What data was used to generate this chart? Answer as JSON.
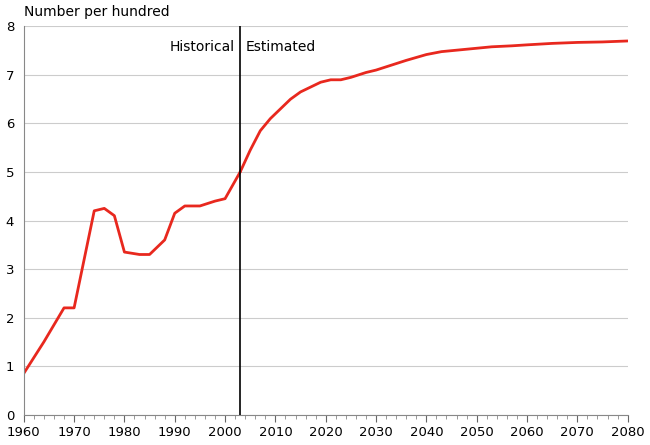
{
  "ylabel_top": "Number per hundred",
  "line_color": "#e8281e",
  "line_width": 2.0,
  "background_color": "#ffffff",
  "divider_x": 2003,
  "label_historical": "Historical",
  "label_estimated": "Estimated",
  "ylim": [
    0,
    8
  ],
  "yticks": [
    0,
    1,
    2,
    3,
    4,
    5,
    6,
    7,
    8
  ],
  "historical_years": [
    1960,
    1964,
    1968,
    1970,
    1974,
    1976,
    1978,
    1980,
    1983,
    1985,
    1988,
    1990,
    1992,
    1995,
    1998,
    2000,
    2003
  ],
  "historical_values": [
    0.85,
    1.5,
    2.2,
    2.2,
    4.2,
    4.25,
    4.1,
    3.35,
    3.3,
    3.3,
    3.6,
    4.15,
    4.3,
    4.3,
    4.4,
    4.45,
    5.0
  ],
  "estimated_years": [
    2003,
    2005,
    2007,
    2009,
    2011,
    2013,
    2015,
    2017,
    2019,
    2021,
    2023,
    2025,
    2028,
    2030,
    2033,
    2036,
    2040,
    2043,
    2047,
    2050,
    2053,
    2057,
    2060,
    2065,
    2070,
    2075,
    2080
  ],
  "estimated_values": [
    5.0,
    5.45,
    5.85,
    6.1,
    6.3,
    6.5,
    6.65,
    6.75,
    6.85,
    6.9,
    6.9,
    6.95,
    7.05,
    7.1,
    7.2,
    7.3,
    7.42,
    7.48,
    7.52,
    7.55,
    7.58,
    7.6,
    7.62,
    7.65,
    7.67,
    7.68,
    7.7
  ],
  "xtick_major": [
    1960,
    1970,
    1980,
    1990,
    2000,
    2010,
    2020,
    2030,
    2040,
    2050,
    2060,
    2070,
    2080
  ],
  "xlim": [
    1960,
    2080
  ],
  "grid_color": "#cccccc",
  "label_fontsize": 10,
  "tick_fontsize": 9.5,
  "ylabel_fontsize": 10
}
